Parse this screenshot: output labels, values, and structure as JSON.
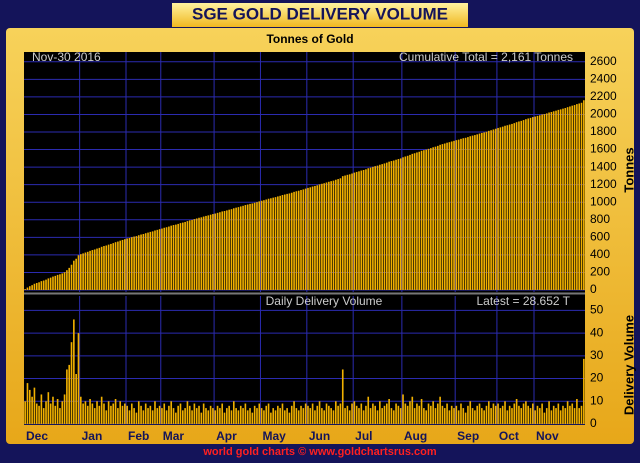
{
  "chart_data": {
    "type": "bar",
    "title": "SGE GOLD DELIVERY VOLUME",
    "subtitle": "Tonnes of Gold",
    "date_label": "Nov-30  2016",
    "cumulative_label": "Cumulative Total = 2,161 Tonnes",
    "lower_title": "Daily Delivery Volume",
    "latest_label": "Latest = 28.652 T",
    "ylabel": "Tonnes",
    "y2label": "Delivery Volume",
    "footer": "world gold charts © www.goldchartsrus.com",
    "color": "#f0b000",
    "grid": true,
    "ylim": [
      0,
      2700
    ],
    "yticks": [
      0,
      200,
      400,
      600,
      800,
      1000,
      1200,
      1400,
      1600,
      1800,
      2000,
      2200,
      2400,
      2600
    ],
    "y2lim": [
      0,
      55
    ],
    "y2ticks": [
      0,
      10,
      20,
      30,
      40,
      50
    ],
    "months": [
      {
        "label": "Dec",
        "values": [
          10,
          18,
          15,
          12,
          16,
          9,
          8,
          13,
          7,
          10,
          14,
          9,
          12,
          8,
          11,
          7,
          10,
          13,
          24,
          26,
          36,
          46,
          22,
          40
        ]
      },
      {
        "label": "Jan",
        "values": [
          12,
          9,
          10,
          8,
          11,
          9,
          7,
          10,
          8,
          12,
          9,
          6,
          10,
          8,
          9,
          11,
          7,
          10,
          8,
          9
        ]
      },
      {
        "label": "Feb",
        "values": [
          8,
          6,
          9,
          7,
          5,
          10,
          8,
          6,
          9,
          7,
          8,
          6,
          10,
          7,
          8
        ]
      },
      {
        "label": "Mar",
        "values": [
          7,
          9,
          6,
          8,
          10,
          7,
          5,
          8,
          9,
          6,
          7,
          10,
          8,
          6,
          9,
          7,
          8,
          5,
          9,
          7,
          6,
          8,
          7
        ]
      },
      {
        "label": "Apr",
        "values": [
          6,
          8,
          7,
          9,
          5,
          7,
          8,
          6,
          10,
          7,
          6,
          8,
          7,
          9,
          6,
          7,
          5,
          8,
          7,
          9
        ]
      },
      {
        "label": "May",
        "values": [
          7,
          6,
          8,
          9,
          5,
          7,
          6,
          8,
          7,
          9,
          6,
          7,
          5,
          8,
          10,
          7,
          6,
          8,
          7,
          9
        ]
      },
      {
        "label": "Jun",
        "values": [
          8,
          7,
          9,
          6,
          8,
          10,
          7,
          6,
          9,
          8,
          7,
          6,
          10,
          8,
          9,
          24,
          7,
          8,
          6,
          9
        ]
      },
      {
        "label": "Jul",
        "values": [
          10,
          8,
          7,
          9,
          6,
          8,
          12,
          7,
          9,
          8,
          6,
          10,
          7,
          8,
          9,
          11,
          7,
          6,
          9,
          8,
          7
        ]
      },
      {
        "label": "Aug",
        "values": [
          13,
          9,
          8,
          10,
          12,
          7,
          9,
          8,
          11,
          7,
          6,
          9,
          8,
          10,
          7,
          9,
          12,
          8,
          7,
          9,
          6,
          8,
          7
        ]
      },
      {
        "label": "Sep",
        "values": [
          8,
          6,
          9,
          7,
          5,
          8,
          10,
          7,
          6,
          8,
          9,
          7,
          6,
          8,
          10,
          7,
          9,
          8
        ]
      },
      {
        "label": "Oct",
        "values": [
          9,
          7,
          8,
          10,
          6,
          8,
          7,
          9,
          11,
          8,
          7,
          9,
          10,
          8,
          7,
          9
        ]
      },
      {
        "label": "Nov",
        "values": [
          6,
          8,
          7,
          9,
          5,
          7,
          10,
          6,
          8,
          7,
          9,
          6,
          8,
          7,
          10,
          8,
          9,
          7,
          11,
          7,
          8,
          28.652
        ]
      }
    ]
  }
}
